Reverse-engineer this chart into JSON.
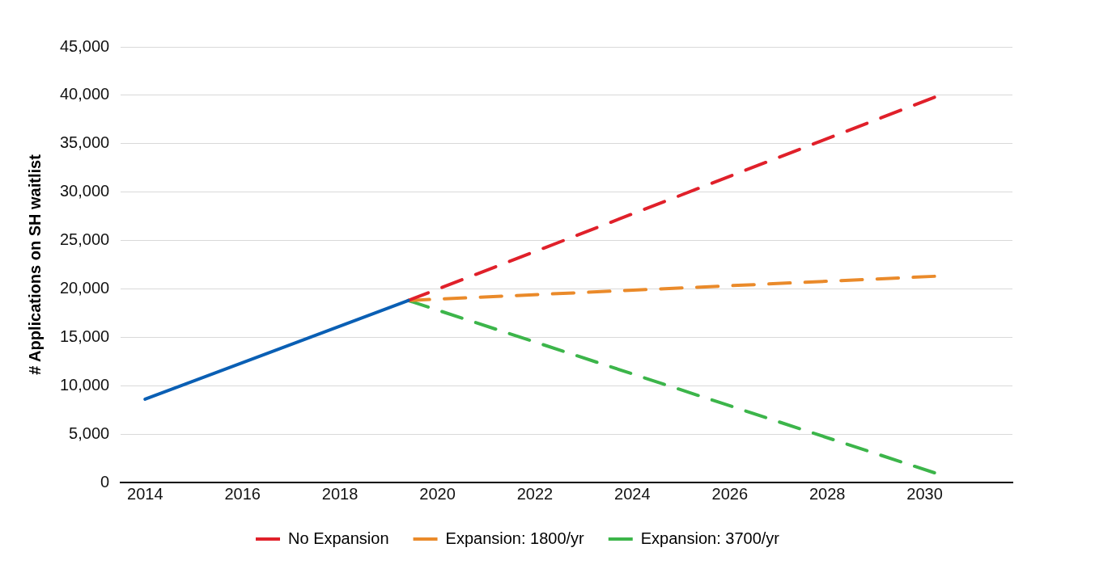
{
  "chart_data": {
    "type": "line",
    "ylabel": "# Applications on SH waitlist",
    "xlim": [
      2013.5,
      2031.8
    ],
    "xticks": [
      2014,
      2016,
      2018,
      2020,
      2022,
      2024,
      2026,
      2028,
      2030
    ],
    "ylim": [
      0,
      45000
    ],
    "yticks": [
      {
        "value": 0,
        "label": "0"
      },
      {
        "value": 5000,
        "label": "5,000"
      },
      {
        "value": 10000,
        "label": "10,000"
      },
      {
        "value": 15000,
        "label": "15,000"
      },
      {
        "value": 20000,
        "label": "20,000"
      },
      {
        "value": 25000,
        "label": "25,000"
      },
      {
        "value": 30000,
        "label": "30,000"
      },
      {
        "value": 35000,
        "label": "35,000"
      },
      {
        "value": 40000,
        "label": "40,000"
      },
      {
        "value": 45000,
        "label": "45,000"
      }
    ],
    "grid": "y",
    "legend": "bottom",
    "marker": "none",
    "series": [
      {
        "color": "#0a5fb4",
        "x": [
          2014,
          2019.4
        ],
        "values": [
          8600,
          18800
        ],
        "line_style": "solid"
      },
      {
        "name": "No Expansion",
        "color": "#e0202a",
        "x": [
          2019.4,
          2030.2
        ],
        "values": [
          18800,
          39800
        ],
        "line_style": "dashed"
      },
      {
        "name": "Expansion: 1800/yr",
        "color": "#ea8a2a",
        "x": [
          2019.4,
          2030.2
        ],
        "values": [
          18800,
          21300
        ],
        "line_style": "dashed"
      },
      {
        "name": "Expansion: 3700/yr",
        "color": "#3cb54a",
        "x": [
          2019.4,
          2030.2
        ],
        "values": [
          18800,
          1000
        ],
        "line_style": "dashed"
      }
    ]
  }
}
